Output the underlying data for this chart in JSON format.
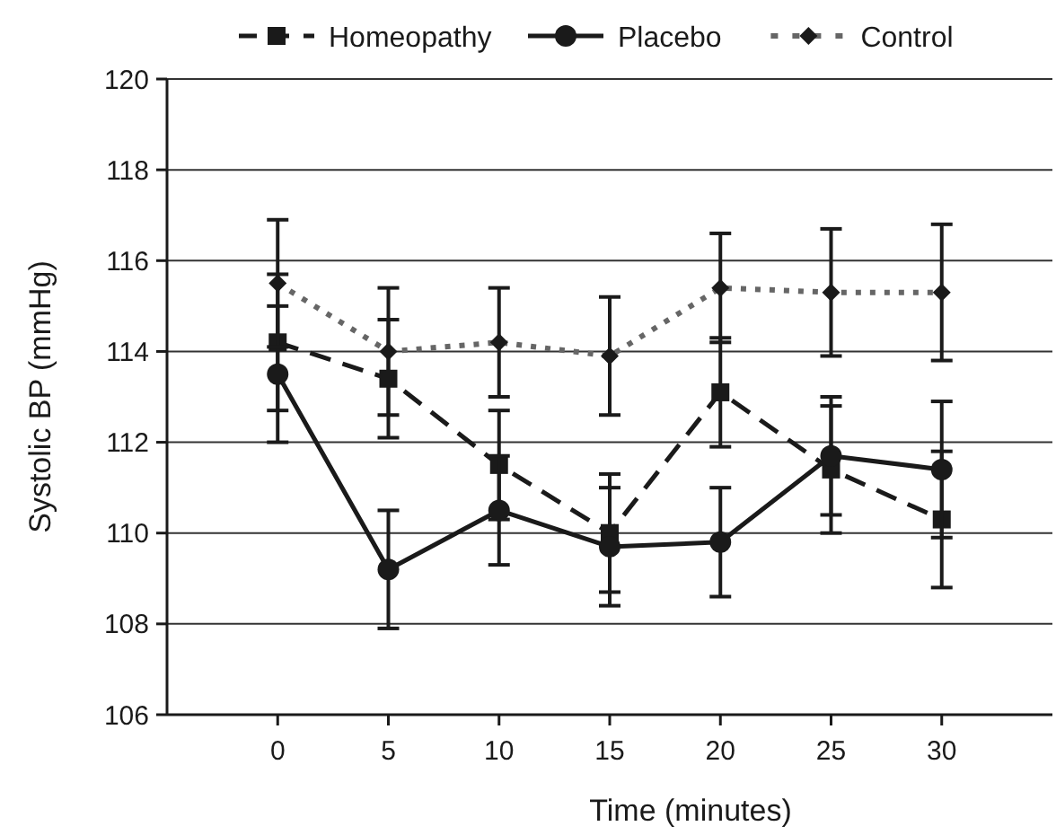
{
  "chart_data": {
    "type": "line",
    "xlabel": "Time (minutes)",
    "ylabel": "Systolic BP (mmHg)",
    "x": [
      0,
      5,
      10,
      15,
      20,
      25,
      30
    ],
    "xlim": [
      -5,
      35
    ],
    "xticks": [
      0,
      5,
      10,
      15,
      20,
      25,
      30
    ],
    "ylim": [
      106,
      120
    ],
    "yticks": [
      106,
      108,
      110,
      112,
      114,
      116,
      118,
      120
    ],
    "grid": "y",
    "legend": "top",
    "series": [
      {
        "name": "Homeopathy",
        "color": "#1a1a1a",
        "marker": "square",
        "line_style": "dashed",
        "values": [
          114.2,
          113.4,
          111.5,
          110.0,
          113.1,
          111.4,
          110.3
        ],
        "errors": [
          1.5,
          1.3,
          1.2,
          1.3,
          1.2,
          1.4,
          1.5
        ]
      },
      {
        "name": "Placebo",
        "color": "#1a1a1a",
        "marker": "circle",
        "line_style": "solid",
        "values": [
          113.5,
          109.2,
          110.5,
          109.7,
          109.8,
          111.7,
          111.4
        ],
        "errors": [
          1.5,
          1.3,
          1.2,
          1.3,
          1.2,
          1.3,
          1.5
        ]
      },
      {
        "name": "Control",
        "color": "#666666",
        "marker": "diamond",
        "line_style": "dotted",
        "values": [
          115.5,
          114.0,
          114.2,
          113.9,
          115.4,
          115.3,
          115.3
        ],
        "errors": [
          1.4,
          1.4,
          1.2,
          1.3,
          1.2,
          1.4,
          1.5
        ]
      }
    ]
  }
}
